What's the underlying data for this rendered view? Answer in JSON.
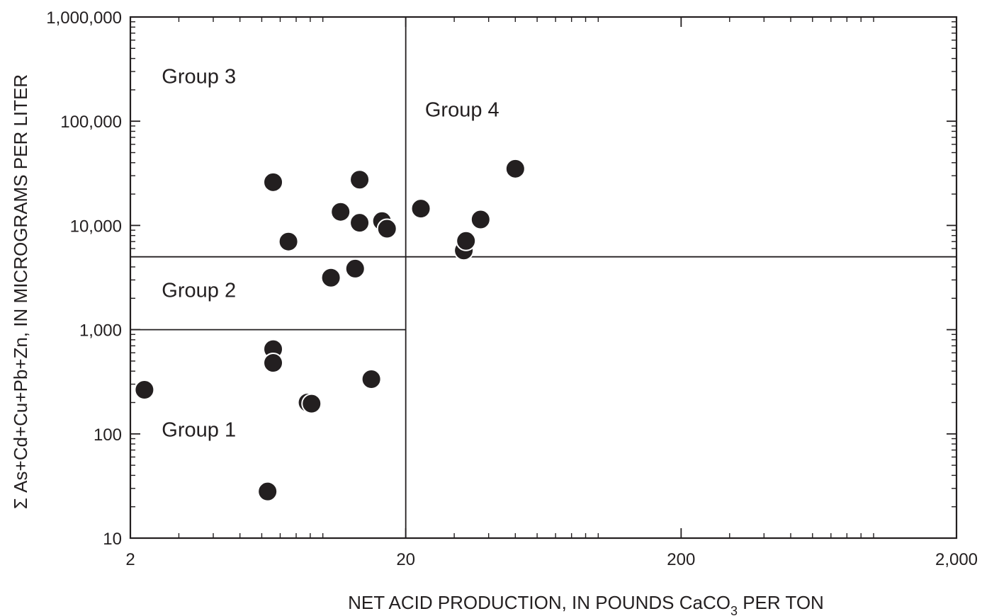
{
  "chart_data": {
    "type": "scatter",
    "title": "",
    "xlabel_parts": [
      "NET ACID PRODUCTION, IN POUNDS CaCO",
      "3",
      " PER TON"
    ],
    "ylabel": "Σ As+Cd+Cu+Pb+Zn, IN MICROGRAMS PER LITER",
    "x_scale": "log",
    "y_scale": "log",
    "xlim": [
      2,
      2000
    ],
    "ylim": [
      10,
      1000000
    ],
    "x_ticks": [
      {
        "value": 2,
        "label": "2"
      },
      {
        "value": 20,
        "label": "20"
      },
      {
        "value": 200,
        "label": "200"
      },
      {
        "value": 2000,
        "label": "2,000"
      }
    ],
    "y_ticks": [
      {
        "value": 10,
        "label": "10"
      },
      {
        "value": 100,
        "label": "100"
      },
      {
        "value": 1000,
        "label": "1,000"
      },
      {
        "value": 10000,
        "label": "10,000"
      },
      {
        "value": 100000,
        "label": "100,000"
      },
      {
        "value": 1000000,
        "label": "1,000,000"
      }
    ],
    "grid": false,
    "dividers": {
      "vertical_x": 20,
      "upper_horizontal_y": 5000,
      "lower_horizontal_y": 1000
    },
    "group_labels": [
      {
        "text": "Group 1",
        "x": 2.6,
        "y": 110
      },
      {
        "text": "Group 2",
        "x": 2.6,
        "y": 2400
      },
      {
        "text": "Group 3",
        "x": 2.6,
        "y": 270000
      },
      {
        "text": "Group 4",
        "x": 23.5,
        "y": 130000
      }
    ],
    "points": [
      {
        "x": 2.25,
        "y": 265
      },
      {
        "x": 6.3,
        "y": 28
      },
      {
        "x": 6.6,
        "y": 650
      },
      {
        "x": 6.6,
        "y": 480
      },
      {
        "x": 6.6,
        "y": 26000
      },
      {
        "x": 7.5,
        "y": 7000
      },
      {
        "x": 8.8,
        "y": 200
      },
      {
        "x": 9.1,
        "y": 195
      },
      {
        "x": 10.7,
        "y": 3150
      },
      {
        "x": 11.6,
        "y": 13500
      },
      {
        "x": 13.1,
        "y": 3850
      },
      {
        "x": 13.6,
        "y": 27500
      },
      {
        "x": 13.6,
        "y": 10600
      },
      {
        "x": 15.0,
        "y": 335
      },
      {
        "x": 16.4,
        "y": 11000
      },
      {
        "x": 17.1,
        "y": 9300
      },
      {
        "x": 22.7,
        "y": 14500
      },
      {
        "x": 32.5,
        "y": 5750
      },
      {
        "x": 33.1,
        "y": 7100
      },
      {
        "x": 37.4,
        "y": 11400
      },
      {
        "x": 50.0,
        "y": 35000
      }
    ],
    "colors": {
      "ink": "#231f20",
      "marker": "#231f20",
      "marker_edge": "#ffffff",
      "background": "#ffffff"
    }
  }
}
